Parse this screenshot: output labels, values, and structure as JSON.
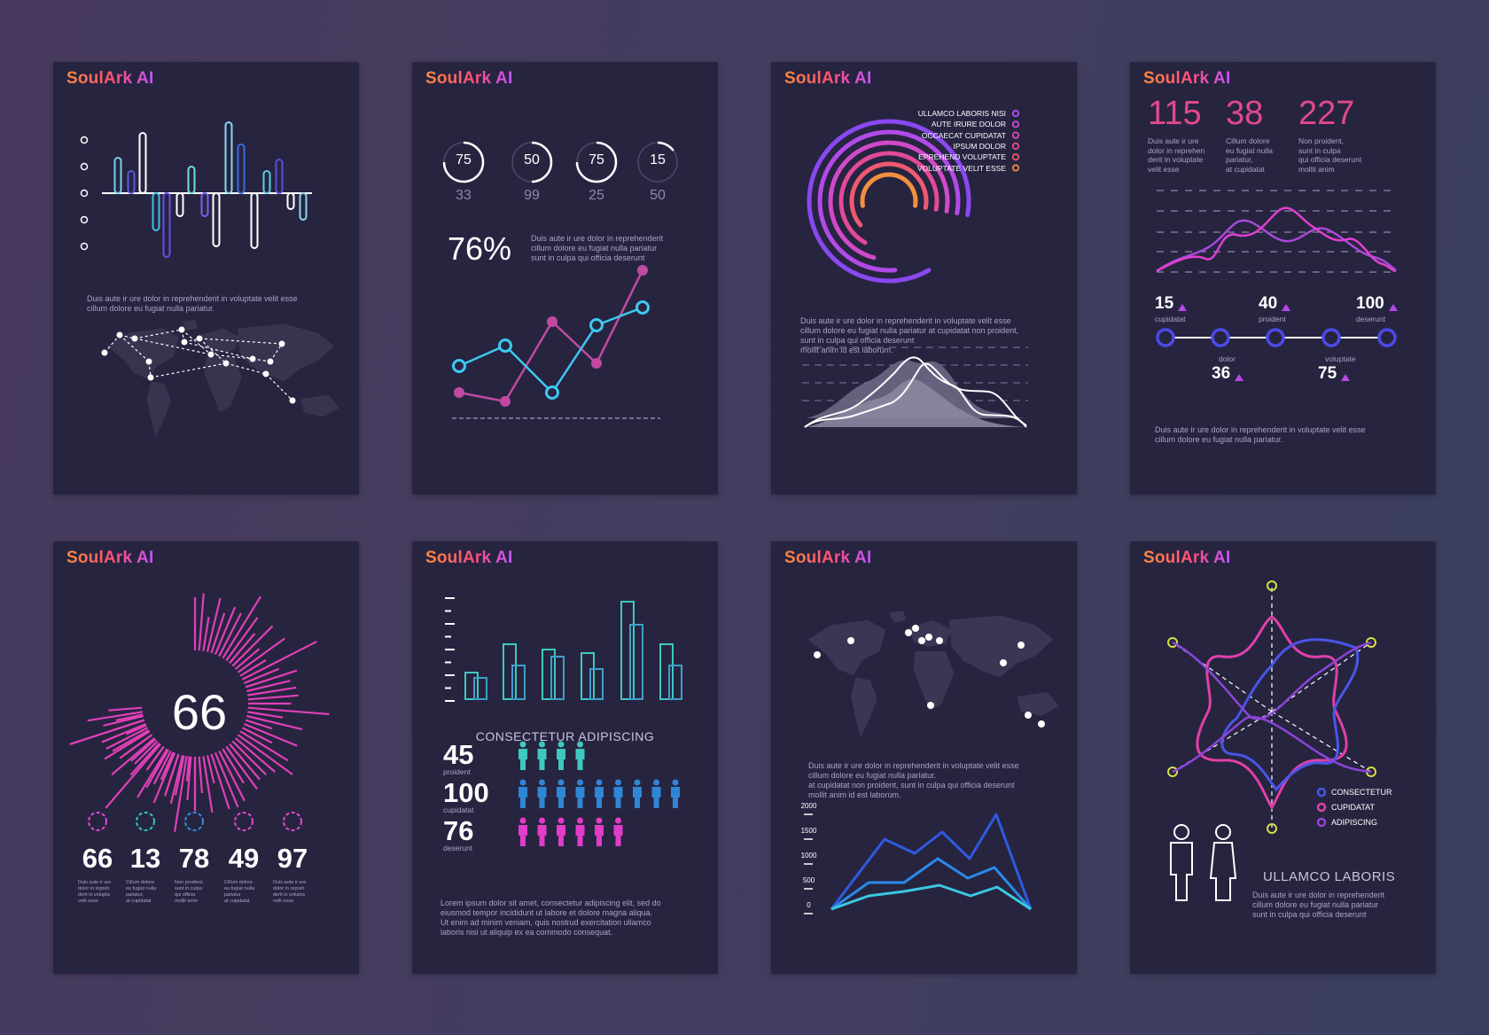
{
  "brand": "SoulArk AI",
  "lorem": {
    "c1": [
      "Duis aute ir ure dolor in reprehenderit in voluptate velit esse",
      "cillum dolore eu fugiat nulla pariatur."
    ],
    "c2": [
      "Duis aute ir ure dolor in reprehenderit",
      "cillum dolore eu fugiat nulla pariatur",
      "sunt in culpa qui officia deserunt"
    ],
    "c3": [
      "Duis aute ir ure dolor in reprehenderit in voluptate velit esse",
      "cillum dolore eu fugiat nulla pariatur at cupidatat non proident,",
      "sunt in culpa qui officia deserunt",
      "mollit anim id est laborum."
    ],
    "c4": [
      "Duis aute ir ure dolor in reprehenderit in voluptate velit esse",
      "cillum dolore eu fugiat nulla pariatur."
    ],
    "c6": [
      "Lorem ipsum dolor sit amet, consectetur adipiscing elit, sed do",
      "eiusmod tempor incididunt ut labore et dolore magna aliqua.",
      "Ut enim ad minim veniam, quis nostrud exercitation ullamco",
      "laboris nisi ut aliquip ex ea commodo consequat."
    ],
    "c7": [
      "Duis aute ir ure dolor in reprehenderit in voluptate velit esse",
      "cillum dolore eu fugiat nulla pariatur.",
      " at cupidatat non proident, sunt in culpa qui officia deserunt",
      "mollit anim id est laborum."
    ],
    "c8": [
      "Duis aute ir ure dolor in reprehenderit",
      "cillum dolore eu fugiat nulla pariatur",
      "sunt in culpa qui officia deserunt"
    ]
  },
  "card2": {
    "rings": [
      {
        "inner": "75",
        "below": "33",
        "fill": 0.75
      },
      {
        "inner": "50",
        "below": "99",
        "fill": 0.5
      },
      {
        "inner": "75",
        "below": "25",
        "fill": 0.75
      },
      {
        "inner": "15",
        "below": "50",
        "fill": 0.15
      }
    ],
    "percent": "76%"
  },
  "card3": {
    "legend": [
      "ULLAMCO LABORIS NISI",
      "AUTE IRURE DOLOR",
      "OCCAECAT CUPIDATAT",
      "IPSUM DOLOR",
      "EPREHEND VOLUPTATE",
      "VOLUPTATE VELIT ESSE"
    ],
    "legend_colors": [
      "#b44cff",
      "#d04be0",
      "#e248b8",
      "#ea4a8e",
      "#f0566a",
      "#f28a3a"
    ]
  },
  "card4": {
    "stats": [
      {
        "value": "115",
        "text": [
          "Duis aute ir ure",
          "dolor in reprehen",
          "derit in voluptate",
          "velit esse"
        ]
      },
      {
        "value": "38",
        "text": [
          "Cillum dolore",
          "eu fugiat nulla",
          "pariatur,",
          " at cupidatat"
        ]
      },
      {
        "value": "227",
        "text": [
          "Non proident,",
          "sunt in culpa",
          "qui officia deserunt",
          "mollit anim"
        ]
      }
    ],
    "top": [
      {
        "value": "15",
        "label": "cupidatat"
      },
      {
        "value": "40",
        "label": "proident"
      },
      {
        "value": "100",
        "label": "deserunt"
      }
    ],
    "bottom": [
      {
        "value": "36",
        "label": "dolor"
      },
      {
        "value": "75",
        "label": "voluptate"
      }
    ]
  },
  "card5": {
    "center": "66",
    "stats": [
      {
        "value": "66",
        "text": [
          "Duis aute ir ure",
          "dolor in repreh",
          "derit in volupta",
          "velit esse"
        ],
        "color": "#e04ad0"
      },
      {
        "value": "13",
        "text": [
          "Cillum dolore",
          "eu fugiat nulla",
          "pariatur,",
          " at cupidatat"
        ],
        "color": "#2fc4c4"
      },
      {
        "value": "78",
        "text": [
          "Non proident,",
          "sunt in culpa",
          "qui officia",
          "mollit anim"
        ],
        "color": "#2f8fd8"
      },
      {
        "value": "49",
        "text": [
          "Cillum dolore",
          "eu fugiat nulla",
          "pariatur",
          "at cupidatat"
        ],
        "color": "#e04ad0"
      },
      {
        "value": "97",
        "text": [
          "Duis aute ir ure",
          "dolor in repreh",
          "derit in volupta",
          "velit esse"
        ],
        "color": "#e04ad0"
      }
    ]
  },
  "card6": {
    "heading": "CONSECTETUR ADIPISCING",
    "rows": [
      {
        "value": "45",
        "label": "proident",
        "count": 4,
        "color": "#3fc8c0"
      },
      {
        "value": "100",
        "label": "cupidatat",
        "count": 9,
        "color": "#2f86d4"
      },
      {
        "value": "76",
        "label": "deserunt",
        "count": 6,
        "color": "#e03cc8"
      }
    ]
  },
  "card7": {
    "yticks": [
      "2000",
      "1500",
      "1000",
      "500",
      "0"
    ]
  },
  "card8": {
    "legend": [
      "CONSECTETUR",
      "CUPIDATAT",
      "ADIPISCING"
    ],
    "legend_colors": [
      "#4a55e8",
      "#e040a8",
      "#9a3fd8"
    ],
    "heading": "ULLAMCO LABORIS"
  }
}
